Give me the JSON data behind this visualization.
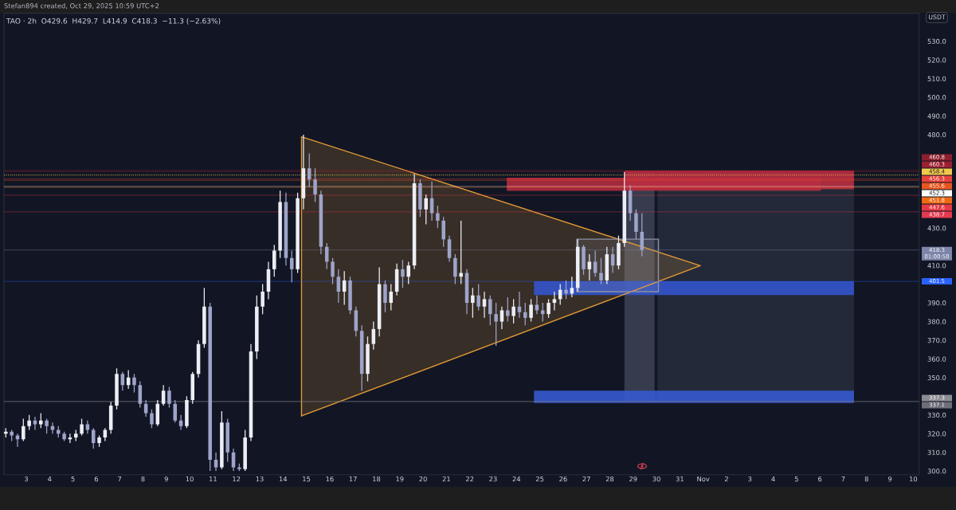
{
  "chart_data": {
    "type": "candlestick",
    "title": "TAO · 2h  O429.6  H429.7  L414.9  C418.3  −11.3 (−2.63%)",
    "ylabel": "USDT",
    "annotations": [
      "Stefan894 created, Oct 29, 2025 10:59 UTC+2"
    ],
    "legend": "right",
    "x": [
      "2025-10-02T03:00",
      "2025-10-02T09:00",
      "2025-10-02T15:00",
      "2025-10-02T21:00",
      "2025-10-03T03:00",
      "2025-10-03T09:00",
      "2025-10-03T15:00",
      "2025-10-03T21:00",
      "2025-10-04T03:00",
      "2025-10-04T09:00",
      "2025-10-04T15:00",
      "2025-10-04T21:00",
      "2025-10-05T03:00",
      "2025-10-05T09:00",
      "2025-10-05T15:00",
      "2025-10-05T21:00",
      "2025-10-06T03:00",
      "2025-10-06T09:00",
      "2025-10-06T15:00",
      "2025-10-06T21:00",
      "2025-10-07T03:00",
      "2025-10-07T09:00",
      "2025-10-07T15:00",
      "2025-10-07T21:00",
      "2025-10-08T03:00",
      "2025-10-08T09:00",
      "2025-10-08T15:00",
      "2025-10-08T21:00",
      "2025-10-09T03:00",
      "2025-10-09T09:00",
      "2025-10-09T15:00",
      "2025-10-09T21:00",
      "2025-10-10T03:00",
      "2025-10-10T09:00",
      "2025-10-10T15:00",
      "2025-10-10T21:00",
      "2025-10-11T03:00",
      "2025-10-11T09:00",
      "2025-10-11T15:00",
      "2025-10-11T21:00",
      "2025-10-12T03:00",
      "2025-10-12T09:00",
      "2025-10-12T15:00",
      "2025-10-12T21:00",
      "2025-10-13T03:00",
      "2025-10-13T09:00",
      "2025-10-13T15:00",
      "2025-10-13T21:00",
      "2025-10-14T03:00",
      "2025-10-14T09:00",
      "2025-10-14T15:00",
      "2025-10-14T21:00",
      "2025-10-15T03:00",
      "2025-10-15T09:00",
      "2025-10-15T15:00",
      "2025-10-15T21:00",
      "2025-10-16T03:00",
      "2025-10-16T09:00",
      "2025-10-16T15:00",
      "2025-10-16T21:00",
      "2025-10-17T03:00",
      "2025-10-17T09:00",
      "2025-10-17T15:00",
      "2025-10-17T21:00",
      "2025-10-18T03:00",
      "2025-10-18T09:00",
      "2025-10-18T15:00",
      "2025-10-18T21:00",
      "2025-10-19T03:00",
      "2025-10-19T09:00",
      "2025-10-19T15:00",
      "2025-10-19T21:00",
      "2025-10-20T03:00",
      "2025-10-20T09:00",
      "2025-10-20T15:00",
      "2025-10-20T21:00",
      "2025-10-21T03:00",
      "2025-10-21T09:00",
      "2025-10-21T15:00",
      "2025-10-21T21:00",
      "2025-10-22T03:00",
      "2025-10-22T09:00",
      "2025-10-22T15:00",
      "2025-10-22T21:00",
      "2025-10-23T03:00",
      "2025-10-23T09:00",
      "2025-10-23T15:00",
      "2025-10-23T21:00",
      "2025-10-24T03:00",
      "2025-10-24T09:00",
      "2025-10-24T15:00",
      "2025-10-24T21:00",
      "2025-10-25T03:00",
      "2025-10-25T09:00",
      "2025-10-25T15:00",
      "2025-10-25T21:00",
      "2025-10-26T03:00",
      "2025-10-26T09:00",
      "2025-10-26T15:00",
      "2025-10-26T21:00",
      "2025-10-27T03:00",
      "2025-10-27T09:00",
      "2025-10-27T15:00",
      "2025-10-27T21:00",
      "2025-10-28T03:00",
      "2025-10-28T09:00",
      "2025-10-28T15:00",
      "2025-10-28T21:00",
      "2025-10-29T03:00",
      "2025-10-29T09:00"
    ],
    "ohlc": [
      [
        320,
        323,
        318,
        321
      ],
      [
        321,
        322,
        316,
        319
      ],
      [
        319,
        320,
        313,
        317
      ],
      [
        317,
        328,
        316,
        324
      ],
      [
        324,
        330,
        322,
        327
      ],
      [
        327,
        329,
        322,
        325
      ],
      [
        325,
        331,
        323,
        327
      ],
      [
        327,
        328,
        320,
        324
      ],
      [
        324,
        326,
        320,
        322
      ],
      [
        322,
        324,
        318,
        320
      ],
      [
        320,
        321,
        316,
        317
      ],
      [
        317,
        320,
        315,
        318
      ],
      [
        318,
        322,
        316,
        320
      ],
      [
        320,
        328,
        319,
        325
      ],
      [
        325,
        327,
        320,
        322
      ],
      [
        322,
        323,
        312,
        315
      ],
      [
        315,
        319,
        313,
        318
      ],
      [
        318,
        323,
        316,
        322
      ],
      [
        322,
        337,
        320,
        335
      ],
      [
        335,
        355,
        333,
        352
      ],
      [
        352,
        353,
        343,
        346
      ],
      [
        346,
        354,
        344,
        350
      ],
      [
        350,
        352,
        342,
        346
      ],
      [
        346,
        348,
        334,
        336
      ],
      [
        336,
        338,
        329,
        331
      ],
      [
        331,
        333,
        323,
        325
      ],
      [
        325,
        338,
        324,
        336
      ],
      [
        336,
        346,
        335,
        343
      ],
      [
        343,
        345,
        334,
        336
      ],
      [
        336,
        338,
        326,
        327
      ],
      [
        327,
        330,
        322,
        324
      ],
      [
        324,
        340,
        323,
        338
      ],
      [
        338,
        353,
        336,
        352
      ],
      [
        352,
        370,
        350,
        368
      ],
      [
        368,
        398,
        366,
        388
      ],
      [
        388,
        390,
        300,
        306
      ],
      [
        306,
        310,
        300,
        302
      ],
      [
        302,
        332,
        301,
        326
      ],
      [
        326,
        328,
        305,
        310
      ],
      [
        310,
        312,
        300,
        302
      ],
      [
        302,
        304,
        300,
        301
      ],
      [
        301,
        322,
        300,
        318
      ],
      [
        318,
        368,
        316,
        364
      ],
      [
        364,
        394,
        360,
        388
      ],
      [
        388,
        400,
        384,
        396
      ],
      [
        396,
        412,
        392,
        408
      ],
      [
        408,
        421,
        404,
        418
      ],
      [
        418,
        450,
        414,
        444
      ],
      [
        444,
        449,
        410,
        414
      ],
      [
        414,
        418,
        401,
        408
      ],
      [
        408,
        449,
        406,
        446
      ],
      [
        446,
        480,
        440,
        462
      ],
      [
        462,
        470,
        452,
        456
      ],
      [
        456,
        462,
        444,
        448
      ],
      [
        448,
        450,
        416,
        420
      ],
      [
        420,
        422,
        408,
        412
      ],
      [
        412,
        414,
        400,
        404
      ],
      [
        404,
        408,
        390,
        396
      ],
      [
        396,
        407,
        389,
        402
      ],
      [
        402,
        404,
        384,
        386
      ],
      [
        386,
        388,
        372,
        375
      ],
      [
        375,
        378,
        343,
        352
      ],
      [
        352,
        372,
        348,
        368
      ],
      [
        368,
        380,
        365,
        376
      ],
      [
        376,
        409,
        372,
        400
      ],
      [
        400,
        402,
        385,
        390
      ],
      [
        390,
        400,
        386,
        396
      ],
      [
        396,
        411,
        394,
        408
      ],
      [
        408,
        413,
        398,
        404
      ],
      [
        404,
        412,
        400,
        410
      ],
      [
        410,
        459,
        408,
        454
      ],
      [
        454,
        456,
        436,
        440
      ],
      [
        440,
        448,
        432,
        446
      ],
      [
        446,
        455,
        434,
        438
      ],
      [
        438,
        442,
        430,
        434
      ],
      [
        434,
        436,
        420,
        424
      ],
      [
        424,
        426,
        412,
        414
      ],
      [
        414,
        416,
        400,
        404
      ],
      [
        404,
        434,
        400,
        406
      ],
      [
        406,
        408,
        384,
        390
      ],
      [
        390,
        398,
        382,
        394
      ],
      [
        394,
        400,
        386,
        388
      ],
      [
        388,
        396,
        382,
        392
      ],
      [
        392,
        394,
        378,
        384
      ],
      [
        384,
        390,
        367,
        380
      ],
      [
        380,
        388,
        376,
        386
      ],
      [
        386,
        393,
        380,
        383
      ],
      [
        383,
        392,
        379,
        388
      ],
      [
        388,
        396,
        382,
        385
      ],
      [
        385,
        390,
        378,
        382
      ],
      [
        382,
        392,
        380,
        389
      ],
      [
        389,
        394,
        384,
        386
      ],
      [
        386,
        390,
        380,
        384
      ],
      [
        384,
        392,
        382,
        390
      ],
      [
        390,
        396,
        386,
        392
      ],
      [
        392,
        400,
        389,
        397
      ],
      [
        397,
        402,
        392,
        395
      ],
      [
        395,
        404,
        393,
        398
      ],
      [
        398,
        424,
        396,
        420
      ],
      [
        420,
        421,
        405,
        408
      ],
      [
        408,
        416,
        402,
        412
      ],
      [
        412,
        418,
        404,
        406
      ],
      [
        406,
        414,
        400,
        402
      ],
      [
        402,
        420,
        400,
        416
      ],
      [
        416,
        420,
        406,
        410
      ],
      [
        410,
        426,
        408,
        422
      ],
      [
        422,
        460,
        420,
        450
      ],
      [
        450,
        453,
        434,
        438
      ],
      [
        438,
        440,
        424,
        428
      ],
      [
        428,
        438,
        415,
        418.3
      ]
    ],
    "colors": [
      "#eceef5",
      "#9ea4c9",
      "#9ea4c9",
      "#eceef5",
      "#eceef5",
      "#9ea4c9",
      "#eceef5",
      "#9ea4c9",
      "#9ea4c9",
      "#9ea4c9",
      "#9ea4c9",
      "#eceef5",
      "#eceef5",
      "#eceef5",
      "#9ea4c9",
      "#9ea4c9",
      "#eceef5",
      "#eceef5",
      "#eceef5",
      "#eceef5",
      "#9ea4c9",
      "#eceef5",
      "#9ea4c9",
      "#9ea4c9",
      "#9ea4c9",
      "#9ea4c9",
      "#eceef5",
      "#eceef5",
      "#9ea4c9",
      "#9ea4c9",
      "#9ea4c9",
      "#eceef5",
      "#eceef5",
      "#eceef5",
      "#eceef5",
      "#9ea4c9",
      "#9ea4c9",
      "#eceef5",
      "#9ea4c9",
      "#9ea4c9",
      "#9ea4c9",
      "#eceef5",
      "#eceef5",
      "#eceef5",
      "#eceef5",
      "#eceef5",
      "#eceef5",
      "#eceef5",
      "#9ea4c9",
      "#9ea4c9",
      "#eceef5",
      "#eceef5",
      "#9ea4c9",
      "#9ea4c9",
      "#9ea4c9",
      "#9ea4c9",
      "#9ea4c9",
      "#9ea4c9",
      "#eceef5",
      "#9ea4c9",
      "#9ea4c9",
      "#9ea4c9",
      "#eceef5",
      "#eceef5",
      "#eceef5",
      "#9ea4c9",
      "#eceef5",
      "#eceef5",
      "#9ea4c9",
      "#eceef5",
      "#eceef5",
      "#9ea4c9",
      "#eceef5",
      "#9ea4c9",
      "#9ea4c9",
      "#9ea4c9",
      "#9ea4c9",
      "#9ea4c9",
      "#eceef5",
      "#9ea4c9",
      "#eceef5",
      "#9ea4c9",
      "#eceef5",
      "#9ea4c9",
      "#9ea4c9",
      "#eceef5",
      "#9ea4c9",
      "#eceef5",
      "#9ea4c9",
      "#9ea4c9",
      "#eceef5",
      "#9ea4c9",
      "#9ea4c9",
      "#eceef5",
      "#eceef5",
      "#eceef5",
      "#9ea4c9",
      "#eceef5",
      "#eceef5",
      "#9ea4c9",
      "#eceef5",
      "#9ea4c9",
      "#9ea4c9",
      "#eceef5",
      "#9ea4c9",
      "#eceef5",
      "#eceef5",
      "#9ea4c9",
      "#9ea4c9",
      "#9ea4c9"
    ],
    "series": [
      {
        "type": "line",
        "color": "#3b4052",
        "x": [
          "2025-10-28T15:00",
          "2025-10-29T22:00"
        ],
        "values": [
          null,
          null
        ],
        "lower": [
          337.1,
          337.1
        ],
        "upper": [
          460.3,
          460.3
        ]
      },
      {
        "type": "line",
        "color": "#262b3b",
        "x": [
          "2025-10-30T01:00",
          "2025-11-07T11:00"
        ],
        "values": [
          null,
          null
        ],
        "lower": [
          337.1,
          337.1
        ],
        "upper": [
          460.3,
          460.3
        ]
      },
      {
        "type": "line",
        "color": "#e39a35",
        "x": [
          "2025-10-14T19:00",
          "2025-10-31T21:00"
        ],
        "values": [
          null,
          null
        ],
        "lower": [
          329.5,
          409.9
        ],
        "upper": [
          478.9,
          409.9
        ],
        "line_style": "solid"
      },
      {
        "type": "line",
        "color": "#b32b3f",
        "x": [
          "2025-10-23T14:00",
          "2025-11-06T01:00"
        ],
        "values": [
          null,
          null
        ],
        "lower": [
          449.9,
          449.9
        ],
        "upper": [
          457.0,
          457.0
        ]
      },
      {
        "type": "line",
        "color": "#b82c40",
        "x": [
          "2025-10-28T15:00",
          "2025-11-07T11:00"
        ],
        "values": [
          null,
          null
        ],
        "lower": [
          450.8,
          450.8
        ],
        "upper": [
          460.8,
          460.8
        ]
      },
      {
        "type": "line",
        "color": "#3354cc",
        "x": [
          "2025-10-24T18:00",
          "2025-11-07T11:00"
        ],
        "values": [
          null,
          null
        ],
        "lower": [
          394.2,
          394.2
        ],
        "upper": [
          401.5,
          401.5
        ]
      },
      {
        "type": "line",
        "color": "#3659cf",
        "x": [
          "2025-10-24T18:00",
          "2025-11-07T11:00"
        ],
        "values": [
          null,
          null
        ],
        "lower": [
          336.4,
          336.4
        ],
        "upper": [
          343.0,
          343.0
        ]
      },
      {
        "type": "line",
        "color": "#8a90a3",
        "x": [
          "2025-10-26T14:00",
          "2025-10-30T02:00"
        ],
        "values": [
          null,
          null
        ],
        "lower": [
          396.0,
          396.0
        ],
        "upper": [
          424.1,
          424.1
        ],
        "line_style": "solid"
      }
    ],
    "ref_lines": [
      {
        "axis": "y",
        "value": 460.8,
        "label": "460.8",
        "color": "#8c1f2e"
      },
      {
        "axis": "y",
        "value": 460.3,
        "label": "460.3",
        "color": "#9b2030"
      },
      {
        "axis": "y",
        "value": 458.4,
        "label": "458.4",
        "color": "#f2c94c",
        "line_style": "dotted"
      },
      {
        "axis": "y",
        "value": 456.3,
        "label": "456.3",
        "color": "#e8413c"
      },
      {
        "axis": "y",
        "value": 455.6,
        "label": "455.6",
        "color": "#e8561f"
      },
      {
        "axis": "y",
        "value": 452.3,
        "label": "452.3",
        "color": "#ffffff"
      },
      {
        "axis": "y",
        "value": 451.8,
        "label": "451.8",
        "color": "#f06a12"
      },
      {
        "axis": "y",
        "value": 447.6,
        "label": "447.6",
        "color": "#e53945"
      },
      {
        "axis": "y",
        "value": 438.7,
        "label": "438.7",
        "color": "#e53950"
      },
      {
        "axis": "y",
        "value": 418.3,
        "label": "418.3\n01:00:50",
        "color": "#7d86a8"
      },
      {
        "axis": "y",
        "value": 401.5,
        "label": "401.5",
        "color": "#2962ff"
      },
      {
        "axis": "y",
        "value": 337.3,
        "label": "337.3",
        "color": "#8c8c94"
      },
      {
        "axis": "y",
        "value": 337.1,
        "label": "337.1",
        "color": "#6e6e78"
      }
    ],
    "xlim": [
      "2025-10-02T01:00",
      "2025-11-10T06:00"
    ],
    "xticks": [
      {
        "value": "2025-10-03",
        "label": "3"
      },
      {
        "value": "2025-10-04",
        "label": "4"
      },
      {
        "value": "2025-10-05",
        "label": "5"
      },
      {
        "value": "2025-10-06",
        "label": "6"
      },
      {
        "value": "2025-10-07",
        "label": "7"
      },
      {
        "value": "2025-10-08",
        "label": "8"
      },
      {
        "value": "2025-10-09",
        "label": "9"
      },
      {
        "value": "2025-10-10",
        "label": "10"
      },
      {
        "value": "2025-10-11",
        "label": "11"
      },
      {
        "value": "2025-10-12",
        "label": "12"
      },
      {
        "value": "2025-10-13",
        "label": "13"
      },
      {
        "value": "2025-10-14",
        "label": "14"
      },
      {
        "value": "2025-10-15",
        "label": "15"
      },
      {
        "value": "2025-10-16",
        "label": "16"
      },
      {
        "value": "2025-10-17",
        "label": "17"
      },
      {
        "value": "2025-10-18",
        "label": "18"
      },
      {
        "value": "2025-10-19",
        "label": "19"
      },
      {
        "value": "2025-10-20",
        "label": "20"
      },
      {
        "value": "2025-10-21",
        "label": "21"
      },
      {
        "value": "2025-10-22",
        "label": "22"
      },
      {
        "value": "2025-10-23",
        "label": "23"
      },
      {
        "value": "2025-10-24",
        "label": "24"
      },
      {
        "value": "2025-10-25",
        "label": "25"
      },
      {
        "value": "2025-10-26",
        "label": "26"
      },
      {
        "value": "2025-10-27",
        "label": "27"
      },
      {
        "value": "2025-10-28",
        "label": "28"
      },
      {
        "value": "2025-10-29",
        "label": "29"
      },
      {
        "value": "2025-10-30",
        "label": "30"
      },
      {
        "value": "2025-10-31",
        "label": "31"
      },
      {
        "value": "2025-11-01",
        "label": "Nov"
      },
      {
        "value": "2025-11-02",
        "label": "2"
      },
      {
        "value": "2025-11-03",
        "label": "3"
      },
      {
        "value": "2025-11-04",
        "label": "4"
      },
      {
        "value": "2025-11-05",
        "label": "5"
      },
      {
        "value": "2025-11-06",
        "label": "6"
      },
      {
        "value": "2025-11-07",
        "label": "7"
      },
      {
        "value": "2025-11-08",
        "label": "8"
      },
      {
        "value": "2025-11-09",
        "label": "9"
      },
      {
        "value": "2025-11-10",
        "label": "10"
      }
    ],
    "ylim": [
      298,
      545
    ],
    "yticks": [
      {
        "value": 300,
        "label": "300.0"
      },
      {
        "value": 310,
        "label": "310.0"
      },
      {
        "value": 320,
        "label": "320.0"
      },
      {
        "value": 330,
        "label": "330.0"
      },
      {
        "value": 350,
        "label": "350.0"
      },
      {
        "value": 360,
        "label": "360.0"
      },
      {
        "value": 370,
        "label": "370.0"
      },
      {
        "value": 380,
        "label": "380.0"
      },
      {
        "value": 390,
        "label": "390.0"
      },
      {
        "value": 410,
        "label": "410.0"
      },
      {
        "value": 430,
        "label": "430.0"
      },
      {
        "value": 480,
        "label": "480.0"
      },
      {
        "value": 490,
        "label": "490.0"
      },
      {
        "value": 500,
        "label": "500.0"
      },
      {
        "value": 510,
        "label": "510.0"
      },
      {
        "value": 520,
        "label": "520.0"
      },
      {
        "value": 530,
        "label": "530.0"
      }
    ]
  }
}
